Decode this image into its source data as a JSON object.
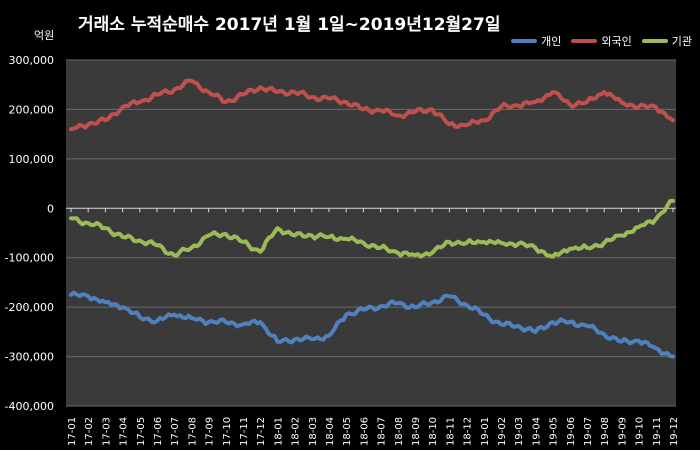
{
  "chart_data": {
    "type": "line",
    "title": "거래소 누적순매수 2017년 1월 1일~2019년12월27일",
    "unit": "억원",
    "ylim": [
      -400000,
      300000
    ],
    "yticks": [
      300000,
      200000,
      100000,
      0,
      -100000,
      -200000,
      -300000,
      -400000
    ],
    "ytick_labels": [
      "300,000",
      "200,000",
      "100,000",
      "0",
      "-100,000",
      "-200,000",
      "-300,000",
      "-400,000"
    ],
    "grid": true,
    "legend_position": "top-right",
    "x": [
      "17-01",
      "17-02",
      "17-03",
      "17-04",
      "17-05",
      "17-06",
      "17-07",
      "17-08",
      "17-09",
      "17-10",
      "17-11",
      "17-12",
      "18-01",
      "18-02",
      "18-03",
      "18-04",
      "18-05",
      "18-06",
      "18-07",
      "18-08",
      "18-09",
      "18-10",
      "18-11",
      "18-12",
      "19-01",
      "19-02",
      "19-03",
      "19-04",
      "19-05",
      "19-06",
      "19-07",
      "19-08",
      "19-09",
      "19-10",
      "19-11",
      "19-12"
    ],
    "series": [
      {
        "name": "개인",
        "color": "#4f81bd",
        "values": [
          -175000,
          -178000,
          -190000,
          -200000,
          -220000,
          -228000,
          -215000,
          -222000,
          -230000,
          -230000,
          -235000,
          -230000,
          -270000,
          -265000,
          -265000,
          -258000,
          -215000,
          -205000,
          -198000,
          -192000,
          -200000,
          -190000,
          -178000,
          -195000,
          -215000,
          -235000,
          -238000,
          -250000,
          -230000,
          -230000,
          -238000,
          -255000,
          -270000,
          -268000,
          -283000,
          -300000
        ]
      },
      {
        "name": "외국인",
        "color": "#c0504d",
        "values": [
          160000,
          170000,
          178000,
          205000,
          215000,
          230000,
          240000,
          258000,
          235000,
          215000,
          230000,
          245000,
          235000,
          235000,
          225000,
          222000,
          215000,
          200000,
          198000,
          188000,
          195000,
          200000,
          170000,
          168000,
          178000,
          205000,
          208000,
          215000,
          235000,
          210000,
          215000,
          235000,
          215000,
          205000,
          205000,
          178000
        ]
      },
      {
        "name": "기관",
        "color": "#9bbb59",
        "values": [
          -20000,
          -30000,
          -40000,
          -58000,
          -65000,
          -75000,
          -95000,
          -80000,
          -55000,
          -52000,
          -68000,
          -88000,
          -40000,
          -55000,
          -55000,
          -58000,
          -62000,
          -70000,
          -80000,
          -90000,
          -95000,
          -90000,
          -68000,
          -70000,
          -68000,
          -70000,
          -72000,
          -80000,
          -98000,
          -82000,
          -80000,
          -70000,
          -55000,
          -38000,
          -22000,
          15000
        ]
      }
    ]
  }
}
